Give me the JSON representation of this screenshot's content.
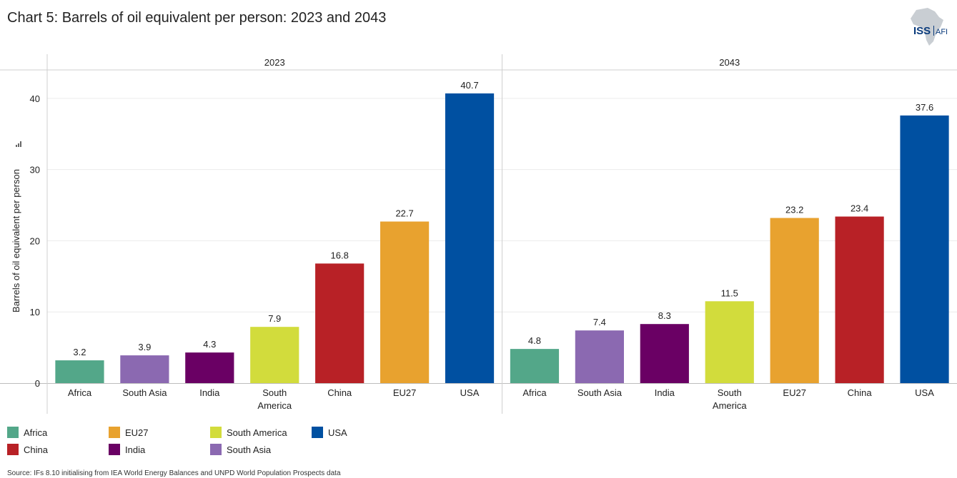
{
  "title": "Chart 5: Barrels of oil equivalent per person: 2023 and 2043",
  "logo": {
    "icon": "africa-map-icon",
    "text_iss": "ISS",
    "text_afi": "AFI"
  },
  "colors": {
    "Africa": "#53a789",
    "South Asia": "#8b69b1",
    "India": "#6a0064",
    "South America": "#d2dc3c",
    "China": "#b82126",
    "EU27": "#e8a22f",
    "USA": "#0050a1"
  },
  "chart_data": {
    "type": "bar",
    "ylabel": "Barrels of oil equivalent per person",
    "ylim": [
      0,
      44
    ],
    "yticks": [
      0,
      10,
      20,
      30,
      40
    ],
    "grid": true,
    "legend_position": "bottom-left",
    "panels": [
      {
        "name": "2023",
        "categories": [
          "Africa",
          "South Asia",
          "India",
          "South America",
          "China",
          "EU27",
          "USA"
        ],
        "values": [
          3.2,
          3.9,
          4.3,
          7.9,
          16.8,
          22.7,
          40.7
        ],
        "labels": [
          "3.2",
          "3.9",
          "4.3",
          "7.9",
          "16.8",
          "22.7",
          "40.7"
        ]
      },
      {
        "name": "2043",
        "categories": [
          "Africa",
          "South Asia",
          "India",
          "South America",
          "EU27",
          "China",
          "USA"
        ],
        "values": [
          4.8,
          7.4,
          8.3,
          11.5,
          23.2,
          23.4,
          37.6
        ],
        "labels": [
          "4.8",
          "7.4",
          "8.3",
          "11.5",
          "23.2",
          "23.4",
          "37.6"
        ]
      }
    ]
  },
  "legend": {
    "items": [
      "Africa",
      "EU27",
      "South America",
      "USA",
      "China",
      "India",
      "South Asia"
    ]
  },
  "source": "Source: IFs 8.10 initialising from IEA World Energy Balances and UNPD World Population Prospects data"
}
